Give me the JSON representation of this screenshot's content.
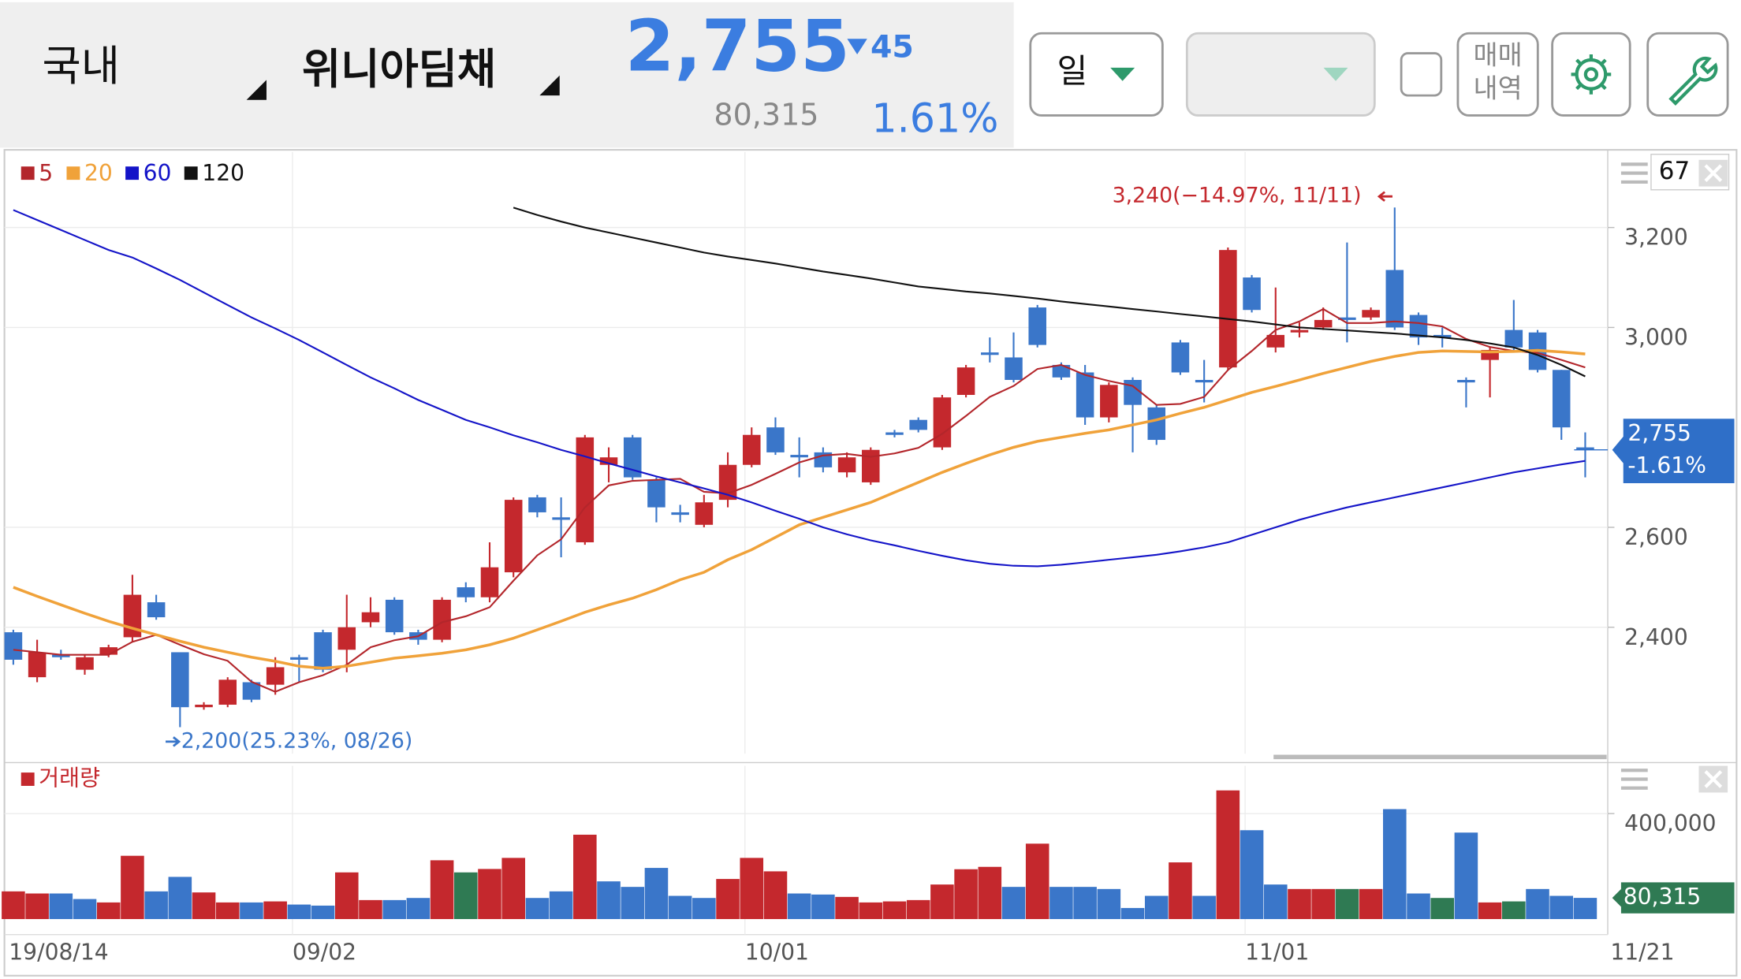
{
  "header": {
    "market": "국내",
    "name": "위니아딤채",
    "price": "2,755",
    "change": "45",
    "volume": "80,315",
    "change_rate": "1.61%",
    "period": "일",
    "trade_history": [
      "매매",
      "내역"
    ]
  },
  "chart_data": [
    {
      "type": "candlestick",
      "open": [
        2390,
        2300,
        2345,
        2315,
        2345,
        2380,
        2450,
        2350,
        2240,
        2245,
        2290,
        2285,
        2340,
        2390,
        2355,
        2410,
        2455,
        2390,
        2375,
        2480,
        2460,
        2510,
        2660,
        2620,
        2570,
        2725,
        2780,
        2695,
        2630,
        2605,
        2655,
        2725,
        2800,
        2745,
        2750,
        2710,
        2690,
        2790,
        2815,
        2760,
        2865,
        2950,
        2940,
        3040,
        2925,
        2910,
        2820,
        2895,
        2840,
        2970,
        2895,
        2920,
        3100,
        2960,
        2990,
        3000,
        3020,
        3020,
        3115,
        3025,
        2985,
        2895,
        2935,
        2995,
        2990,
        2915,
        2760
      ],
      "high": [
        2395,
        2375,
        2355,
        2345,
        2365,
        2505,
        2465,
        2350,
        2250,
        2300,
        2295,
        2340,
        2345,
        2395,
        2465,
        2460,
        2460,
        2395,
        2460,
        2490,
        2570,
        2660,
        2665,
        2660,
        2785,
        2760,
        2785,
        2700,
        2645,
        2665,
        2750,
        2800,
        2820,
        2780,
        2760,
        2750,
        2760,
        2795,
        2820,
        2865,
        2925,
        2980,
        2990,
        3045,
        2930,
        2925,
        2890,
        2900,
        2845,
        2975,
        2935,
        3160,
        3105,
        3080,
        3010,
        3040,
        3170,
        3040,
        3240,
        3030,
        3000,
        2900,
        2960,
        3055,
        2995,
        2915,
        2790
      ],
      "low": [
        2325,
        2290,
        2335,
        2305,
        2340,
        2370,
        2415,
        2200,
        2235,
        2240,
        2250,
        2265,
        2290,
        2310,
        2310,
        2400,
        2385,
        2365,
        2370,
        2450,
        2450,
        2500,
        2620,
        2540,
        2565,
        2690,
        2695,
        2610,
        2610,
        2600,
        2640,
        2720,
        2745,
        2700,
        2710,
        2700,
        2685,
        2780,
        2790,
        2755,
        2860,
        2930,
        2890,
        2960,
        2895,
        2805,
        2810,
        2750,
        2765,
        2905,
        2850,
        2915,
        3030,
        2950,
        2980,
        2995,
        2970,
        3015,
        2995,
        2965,
        2960,
        2840,
        2860,
        2955,
        2910,
        2775,
        2700
      ],
      "close": [
        2335,
        2350,
        2340,
        2340,
        2360,
        2465,
        2420,
        2240,
        2245,
        2295,
        2255,
        2320,
        2335,
        2315,
        2400,
        2430,
        2390,
        2375,
        2455,
        2460,
        2520,
        2655,
        2630,
        2615,
        2780,
        2740,
        2700,
        2640,
        2625,
        2650,
        2725,
        2785,
        2750,
        2740,
        2720,
        2740,
        2755,
        2785,
        2795,
        2860,
        2920,
        2945,
        2895,
        2965,
        2900,
        2820,
        2885,
        2845,
        2775,
        2910,
        2890,
        3155,
        3035,
        2985,
        2995,
        3015,
        3015,
        3035,
        3000,
        2980,
        2980,
        2890,
        2955,
        2960,
        2915,
        2800,
        2755
      ],
      "up_color": "#c4282d",
      "down_color": "#3a76c9",
      "lines": [
        {
          "name": "5",
          "color": "#b3262b",
          "values": [
            2355,
            2350,
            2345,
            2345,
            2345,
            2371,
            2385,
            2365,
            2346,
            2333,
            2291,
            2271,
            2290,
            2304,
            2325,
            2360,
            2374,
            2382,
            2410,
            2422,
            2440,
            2493,
            2544,
            2576,
            2640,
            2684,
            2693,
            2695,
            2697,
            2671,
            2668,
            2685,
            2707,
            2730,
            2744,
            2747,
            2741,
            2748,
            2759,
            2787,
            2823,
            2861,
            2883,
            2917,
            2925,
            2905,
            2893,
            2883,
            2845,
            2847,
            2861,
            2915,
            2953,
            2995,
            3012,
            3037,
            3009,
            3009,
            3012,
            3009,
            3002,
            2977,
            2961,
            2953,
            2949,
            2935,
            2920
          ]
        },
        {
          "name": "20",
          "color": "#f0a23a",
          "values": [
            2480,
            2462,
            2445,
            2428,
            2412,
            2398,
            2385,
            2372,
            2360,
            2350,
            2340,
            2332,
            2322,
            2318,
            2322,
            2330,
            2338,
            2343,
            2348,
            2355,
            2365,
            2378,
            2395,
            2412,
            2430,
            2445,
            2458,
            2475,
            2495,
            2510,
            2535,
            2555,
            2580,
            2605,
            2620,
            2635,
            2650,
            2670,
            2690,
            2710,
            2728,
            2745,
            2760,
            2772,
            2780,
            2788,
            2795,
            2805,
            2815,
            2828,
            2840,
            2855,
            2870,
            2882,
            2895,
            2908,
            2920,
            2932,
            2942,
            2950,
            2953,
            2952,
            2951,
            2952,
            2954,
            2951,
            2947
          ]
        },
        {
          "name": "60",
          "color": "#1414c8",
          "values": [
            3235,
            3215,
            3195,
            3175,
            3155,
            3140,
            3118,
            3095,
            3070,
            3045,
            3020,
            2998,
            2975,
            2950,
            2925,
            2900,
            2878,
            2855,
            2835,
            2815,
            2800,
            2784,
            2770,
            2755,
            2742,
            2728,
            2715,
            2702,
            2690,
            2678,
            2665,
            2650,
            2633,
            2617,
            2600,
            2586,
            2574,
            2564,
            2553,
            2543,
            2534,
            2527,
            2523,
            2522,
            2525,
            2530,
            2535,
            2540,
            2545,
            2552,
            2560,
            2570,
            2585,
            2600,
            2615,
            2628,
            2640,
            2650,
            2660,
            2670,
            2680,
            2690,
            2700,
            2710,
            2718,
            2726,
            2733
          ]
        },
        {
          "name": "120",
          "color": "#111111",
          "values": [
            null,
            null,
            null,
            null,
            null,
            null,
            null,
            null,
            null,
            null,
            null,
            null,
            null,
            null,
            null,
            null,
            null,
            null,
            null,
            null,
            null,
            3240,
            3225,
            3212,
            3200,
            3190,
            3180,
            3170,
            3160,
            3150,
            3142,
            3135,
            3128,
            3120,
            3112,
            3105,
            3098,
            3090,
            3082,
            3077,
            3072,
            3068,
            3063,
            3058,
            3052,
            3047,
            3042,
            3037,
            3032,
            3027,
            3022,
            3017,
            3012,
            3006,
            3000,
            2997,
            2994,
            2991,
            2988,
            2984,
            2980,
            2975,
            2968,
            2960,
            2945,
            2925,
            2902
          ]
        }
      ],
      "ylim": [
        2147,
        3351
      ],
      "yticks": [
        {
          "value": 2400,
          "label": "2,400"
        },
        {
          "value": 2600,
          "label": "2,600"
        },
        {
          "value": 3000,
          "label": "3,000"
        },
        {
          "value": 3200,
          "label": "3,200"
        }
      ],
      "grid": true,
      "visible_count": 67,
      "high_label": "3,240(−14.97%, 11/11)",
      "low_label": "2,200(25.23%, 08/26)",
      "price_label": "2,755",
      "change_label": "-1.61%",
      "price_label_color": "#2f6fc8"
    },
    {
      "type": "bar",
      "title": "거래량",
      "legend_color": "#c4282d",
      "categories": [
        "19/08/14",
        null,
        null,
        null,
        null,
        null,
        null,
        null,
        null,
        null,
        null,
        null,
        "09/02",
        null,
        null,
        null,
        null,
        null,
        null,
        null,
        null,
        null,
        null,
        null,
        null,
        null,
        null,
        null,
        null,
        null,
        null,
        "10/01",
        null,
        null,
        null,
        null,
        null,
        null,
        null,
        null,
        null,
        null,
        null,
        null,
        null,
        null,
        null,
        null,
        null,
        null,
        null,
        null,
        "11/01",
        null,
        null,
        null,
        null,
        null,
        null,
        null,
        null,
        null,
        null,
        null,
        null,
        null,
        "11/21"
      ],
      "values": [
        105000,
        97000,
        97000,
        76000,
        63000,
        240000,
        105000,
        160000,
        101000,
        63000,
        63000,
        67000,
        55000,
        51000,
        177000,
        72000,
        72000,
        80000,
        223000,
        177000,
        190000,
        232000,
        80000,
        105000,
        320000,
        143000,
        122000,
        194000,
        88000,
        80000,
        152000,
        232000,
        181000,
        97000,
        93000,
        84000,
        63000,
        67000,
        72000,
        131000,
        189000,
        198000,
        122000,
        286000,
        122000,
        122000,
        114000,
        42000,
        88000,
        215000,
        88000,
        488000,
        337000,
        131000,
        114000,
        114000,
        114000,
        114000,
        417000,
        97000,
        80000,
        328000,
        63000,
        67000,
        114000,
        88000,
        80315
      ],
      "colors": [
        "#c4282d",
        "#c4282d",
        "#3a76c9",
        "#3a76c9",
        "#c4282d",
        "#c4282d",
        "#3a76c9",
        "#3a76c9",
        "#c4282d",
        "#c4282d",
        "#3a76c9",
        "#c4282d",
        "#3a76c9",
        "#3a76c9",
        "#c4282d",
        "#c4282d",
        "#3a76c9",
        "#3a76c9",
        "#c4282d",
        "#2f7a53",
        "#c4282d",
        "#c4282d",
        "#3a76c9",
        "#3a76c9",
        "#c4282d",
        "#3a76c9",
        "#3a76c9",
        "#3a76c9",
        "#3a76c9",
        "#3a76c9",
        "#c4282d",
        "#c4282d",
        "#c4282d",
        "#3a76c9",
        "#3a76c9",
        "#c4282d",
        "#c4282d",
        "#c4282d",
        "#c4282d",
        "#c4282d",
        "#c4282d",
        "#c4282d",
        "#3a76c9",
        "#c4282d",
        "#3a76c9",
        "#3a76c9",
        "#3a76c9",
        "#3a76c9",
        "#3a76c9",
        "#c4282d",
        "#3a76c9",
        "#c4282d",
        "#3a76c9",
        "#3a76c9",
        "#c4282d",
        "#c4282d",
        "#2f7a53",
        "#c4282d",
        "#3a76c9",
        "#3a76c9",
        "#2f7a53",
        "#3a76c9",
        "#c4282d",
        "#2f7a53",
        "#3a76c9",
        "#3a76c9",
        "#3a76c9"
      ],
      "ylim": [
        0,
        581000
      ],
      "yticks": [
        {
          "value": 400000,
          "label": "400,000"
        }
      ],
      "grid": true,
      "current_label": "80,315",
      "current_label_color": "#2f7a53"
    }
  ]
}
